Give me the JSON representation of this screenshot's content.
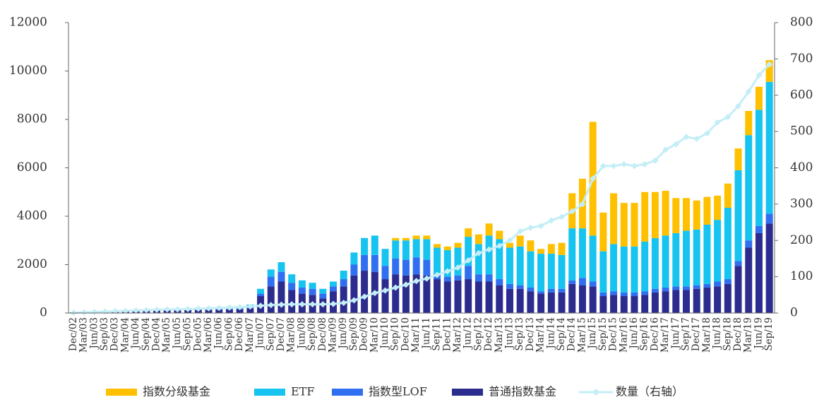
{
  "chart_data": {
    "type": "bar",
    "stacked": true,
    "categories": [
      "Dec/02",
      "Mar/03",
      "Jun/03",
      "Sep/03",
      "Dec/03",
      "Mar/04",
      "Jun/04",
      "Sep/04",
      "Dec/04",
      "Mar/05",
      "Jun/05",
      "Sep/05",
      "Dec/05",
      "Mar/06",
      "Jun/06",
      "Sep/06",
      "Dec/06",
      "Mar/07",
      "Jun/07",
      "Sep/07",
      "Dec/07",
      "Mar/08",
      "Jun/08",
      "Sep/08",
      "Dec/08",
      "Mar/09",
      "Jun/09",
      "Sep/09",
      "Dec/09",
      "Mar/10",
      "Jun/10",
      "Sep/10",
      "Dec/10",
      "Mar/11",
      "Jun/11",
      "Sep/11",
      "Dec/11",
      "Mar/12",
      "Jun/12",
      "Sep/12",
      "Dec/12",
      "Mar/13",
      "Jun/13",
      "Sep/13",
      "Dec/13",
      "Mar/14",
      "Jun/14",
      "Sep/14",
      "Dec/14",
      "Mar/15",
      "Jun/15",
      "Sep/15",
      "Dec/15",
      "Mar/16",
      "Jun/16",
      "Sep/16",
      "Dec/16",
      "Mar/17",
      "Jun/17",
      "Sep/17",
      "Dec/17",
      "Mar/18",
      "Jun/18",
      "Sep/18",
      "Dec/18",
      "Mar/19",
      "Jun/19",
      "Sep/19"
    ],
    "series": [
      {
        "name": "指数分级基金",
        "color": "#ffc000",
        "values": [
          0,
          0,
          0,
          0,
          0,
          0,
          0,
          0,
          0,
          0,
          0,
          0,
          0,
          0,
          0,
          0,
          0,
          0,
          0,
          0,
          0,
          0,
          0,
          0,
          0,
          0,
          0,
          0,
          0,
          0,
          0,
          100,
          100,
          150,
          150,
          150,
          150,
          200,
          350,
          400,
          500,
          350,
          200,
          450,
          450,
          200,
          400,
          500,
          1450,
          2050,
          4700,
          1600,
          2100,
          1800,
          1800,
          2050,
          1900,
          1850,
          1450,
          1350,
          1200,
          1150,
          1000,
          1000,
          900,
          1000,
          950,
          900
        ]
      },
      {
        "name": "ETF",
        "color": "#16c4ef",
        "values": [
          0,
          0,
          0,
          0,
          0,
          20,
          30,
          40,
          50,
          60,
          60,
          70,
          70,
          80,
          80,
          90,
          100,
          120,
          200,
          300,
          400,
          350,
          300,
          250,
          200,
          200,
          350,
          500,
          700,
          800,
          700,
          750,
          800,
          750,
          850,
          1100,
          1100,
          1150,
          1200,
          1250,
          1600,
          1650,
          1500,
          1600,
          1500,
          1550,
          1450,
          1400,
          2150,
          2050,
          1900,
          1700,
          1950,
          1900,
          1900,
          2050,
          2100,
          2150,
          2200,
          2300,
          2300,
          2450,
          2550,
          2950,
          3750,
          4350,
          4800,
          5450
        ]
      },
      {
        "name": "指数型LOF",
        "color": "#2f6ff0",
        "values": [
          0,
          0,
          0,
          0,
          0,
          0,
          0,
          0,
          0,
          10,
          10,
          10,
          10,
          10,
          20,
          20,
          20,
          30,
          100,
          400,
          400,
          300,
          250,
          250,
          200,
          200,
          300,
          450,
          650,
          700,
          550,
          650,
          650,
          700,
          650,
          200,
          200,
          200,
          550,
          300,
          300,
          250,
          200,
          150,
          150,
          100,
          150,
          150,
          150,
          300,
          200,
          150,
          150,
          150,
          150,
          150,
          150,
          150,
          150,
          150,
          150,
          150,
          200,
          200,
          200,
          300,
          300,
          400
        ]
      },
      {
        "name": "普通指数基金",
        "color": "#2c2c8e",
        "values": [
          30,
          40,
          50,
          60,
          70,
          80,
          90,
          100,
          110,
          110,
          120,
          120,
          130,
          130,
          140,
          150,
          160,
          200,
          700,
          1100,
          1300,
          950,
          800,
          750,
          600,
          900,
          1100,
          1550,
          1750,
          1700,
          1400,
          1600,
          1550,
          1600,
          1550,
          1400,
          1300,
          1350,
          1400,
          1300,
          1300,
          1150,
          1000,
          1000,
          900,
          800,
          850,
          850,
          1200,
          1150,
          1100,
          700,
          750,
          700,
          700,
          750,
          850,
          900,
          950,
          950,
          1000,
          1050,
          1100,
          1200,
          1950,
          2700,
          3300,
          3700
        ]
      },
      {
        "name": "数量（右轴）",
        "color": "#c4eef7",
        "axis": "y2",
        "values": [
          1,
          2,
          3,
          4,
          5,
          6,
          7,
          8,
          9,
          10,
          10,
          11,
          12,
          13,
          14,
          15,
          16,
          18,
          20,
          22,
          23,
          24,
          24,
          24,
          24,
          25,
          28,
          35,
          45,
          55,
          62,
          70,
          78,
          88,
          95,
          105,
          115,
          125,
          145,
          165,
          175,
          185,
          200,
          225,
          235,
          240,
          255,
          265,
          280,
          300,
          370,
          405,
          405,
          410,
          405,
          410,
          420,
          450,
          465,
          485,
          480,
          495,
          525,
          540,
          570,
          610,
          655,
          685
        ]
      }
    ],
    "ylim": [
      0,
      12000
    ],
    "yticks": [
      0,
      2000,
      4000,
      6000,
      8000,
      10000,
      12000
    ],
    "y2lim": [
      0,
      800
    ],
    "y2ticks": [
      0,
      100,
      200,
      300,
      400,
      500,
      600,
      700,
      800
    ],
    "legend": "bottom"
  }
}
